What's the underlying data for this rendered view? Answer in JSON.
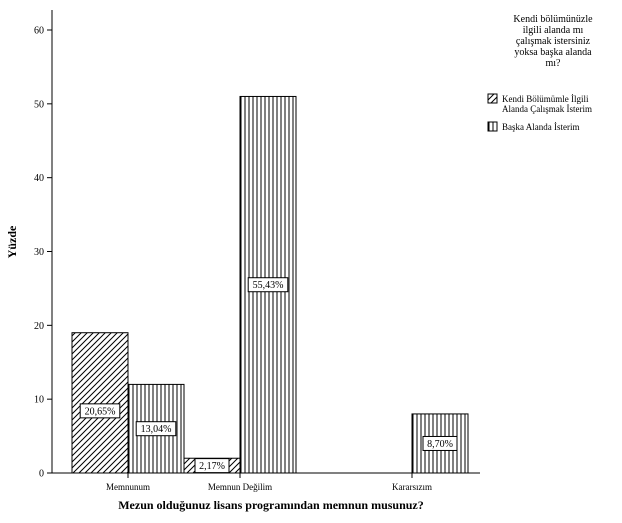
{
  "chart_data": {
    "type": "bar",
    "xlabel": "Mezun olduğunuz lisans programından memnun musunuz?",
    "ylabel": "Yüzde",
    "categories": [
      "Memnunum",
      "Memnun Değilim",
      "Kararsızım"
    ],
    "ylim": [
      0,
      60
    ],
    "yticks": [
      0,
      10,
      20,
      30,
      40,
      50,
      60
    ],
    "legend_title": "Kendi bölümünüzle ilgili alanda mı çalışmak istersiniz yoksa başka alanda mı?",
    "legend_position": "top-right",
    "grid": false,
    "series": [
      {
        "name": "Kendi Bölümümle İlgili Alanda Çalışmak İsterim",
        "pattern": "diagonal-hatch",
        "values": [
          19,
          2,
          null
        ],
        "data_labels": [
          "20,65%",
          "2,17%",
          null
        ]
      },
      {
        "name": "Başka Alanda İsterim",
        "pattern": "vertical-lines",
        "values": [
          12,
          51,
          8
        ],
        "data_labels": [
          "13,04%",
          "55,43%",
          "8,70%"
        ]
      }
    ]
  }
}
